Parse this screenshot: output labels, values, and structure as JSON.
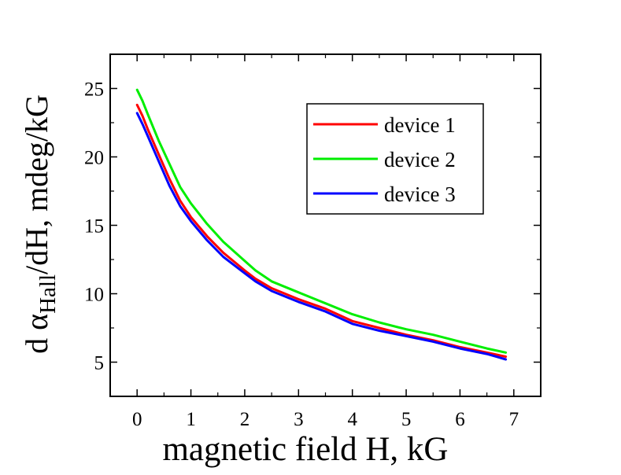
{
  "chart_data": {
    "type": "line",
    "title": "",
    "xlabel": "magnetic field H, kG",
    "ylabel": {
      "prefix": "d α",
      "subscript": "Hall",
      "suffix": "/dH, mdeg/kG"
    },
    "xlim": [
      -0.5,
      7.5
    ],
    "ylim": [
      2.5,
      27.5
    ],
    "xticks": [
      0,
      1,
      2,
      3,
      4,
      5,
      6,
      7
    ],
    "yticks": [
      5,
      10,
      15,
      20,
      25
    ],
    "grid": false,
    "legend_position": "top-right",
    "series": [
      {
        "name": "device 1",
        "color": "#ff0000",
        "x": [
          0.0,
          0.1,
          0.2,
          0.4,
          0.6,
          0.8,
          1.0,
          1.3,
          1.6,
          2.0,
          2.2,
          2.5,
          3.0,
          3.5,
          4.0,
          4.5,
          5.0,
          5.5,
          6.0,
          6.5,
          6.85
        ],
        "y": [
          23.8,
          23.0,
          22.0,
          20.2,
          18.4,
          16.8,
          15.6,
          14.2,
          13.0,
          11.7,
          11.1,
          10.4,
          9.6,
          8.9,
          8.0,
          7.5,
          7.0,
          6.6,
          6.1,
          5.7,
          5.4
        ]
      },
      {
        "name": "device 2",
        "color": "#00ee00",
        "x": [
          0.0,
          0.1,
          0.2,
          0.4,
          0.6,
          0.8,
          1.0,
          1.3,
          1.6,
          2.0,
          2.2,
          2.5,
          3.0,
          3.5,
          4.0,
          4.5,
          5.0,
          5.5,
          6.0,
          6.5,
          6.85
        ],
        "y": [
          24.9,
          24.1,
          23.1,
          21.2,
          19.5,
          17.8,
          16.6,
          15.1,
          13.8,
          12.4,
          11.7,
          10.9,
          10.1,
          9.3,
          8.5,
          7.9,
          7.4,
          7.0,
          6.5,
          6.0,
          5.7
        ]
      },
      {
        "name": "device 3",
        "color": "#0000ff",
        "x": [
          0.0,
          0.1,
          0.2,
          0.4,
          0.6,
          0.8,
          1.0,
          1.3,
          1.6,
          2.0,
          2.2,
          2.5,
          3.0,
          3.5,
          4.0,
          4.5,
          5.0,
          5.5,
          6.0,
          6.5,
          6.85
        ],
        "y": [
          23.2,
          22.4,
          21.5,
          19.7,
          17.9,
          16.4,
          15.3,
          13.9,
          12.7,
          11.5,
          10.9,
          10.2,
          9.4,
          8.7,
          7.8,
          7.3,
          6.9,
          6.5,
          6.0,
          5.6,
          5.2
        ]
      }
    ]
  }
}
